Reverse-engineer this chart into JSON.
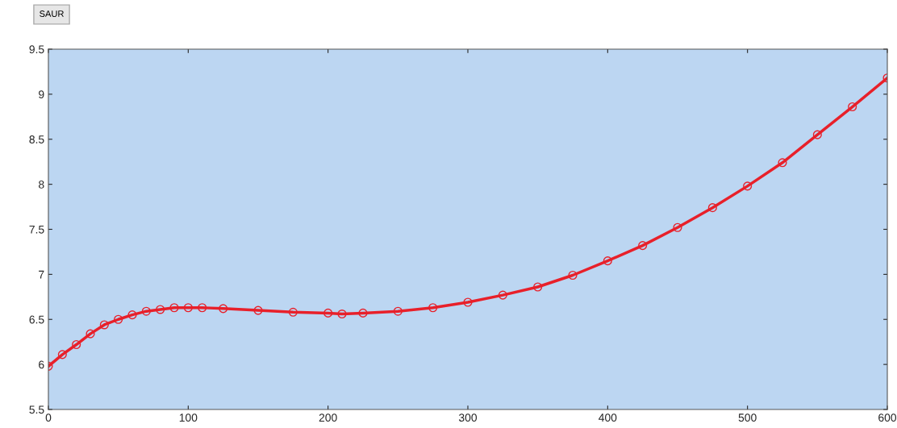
{
  "chart_data": {
    "type": "line",
    "annotations": [
      "SAUR"
    ],
    "x": [
      0,
      10,
      20,
      30,
      40,
      50,
      60,
      70,
      80,
      90,
      100,
      110,
      125,
      150,
      175,
      200,
      210,
      225,
      250,
      275,
      300,
      325,
      350,
      375,
      400,
      425,
      450,
      475,
      500,
      525,
      550,
      575,
      600
    ],
    "series": [
      {
        "color": "#e8202a",
        "values": [
          5.98,
          6.11,
          6.22,
          6.34,
          6.44,
          6.5,
          6.55,
          6.59,
          6.61,
          6.63,
          6.63,
          6.63,
          6.62,
          6.6,
          6.58,
          6.57,
          6.56,
          6.57,
          6.59,
          6.63,
          6.69,
          6.77,
          6.86,
          6.99,
          7.15,
          7.32,
          7.52,
          7.74,
          7.98,
          8.24,
          8.55,
          8.86,
          9.18
        ]
      }
    ],
    "xlim": [
      0,
      600
    ],
    "xticks": [
      0,
      100,
      200,
      300,
      400,
      500,
      600
    ],
    "ylim": [
      5.5,
      9.5
    ],
    "yticks": [
      5.5,
      6,
      6.5,
      7,
      7.5,
      8,
      8.5,
      9,
      9.5
    ],
    "grid": false,
    "legend": false,
    "marker": "circle",
    "line_style": "solid"
  }
}
